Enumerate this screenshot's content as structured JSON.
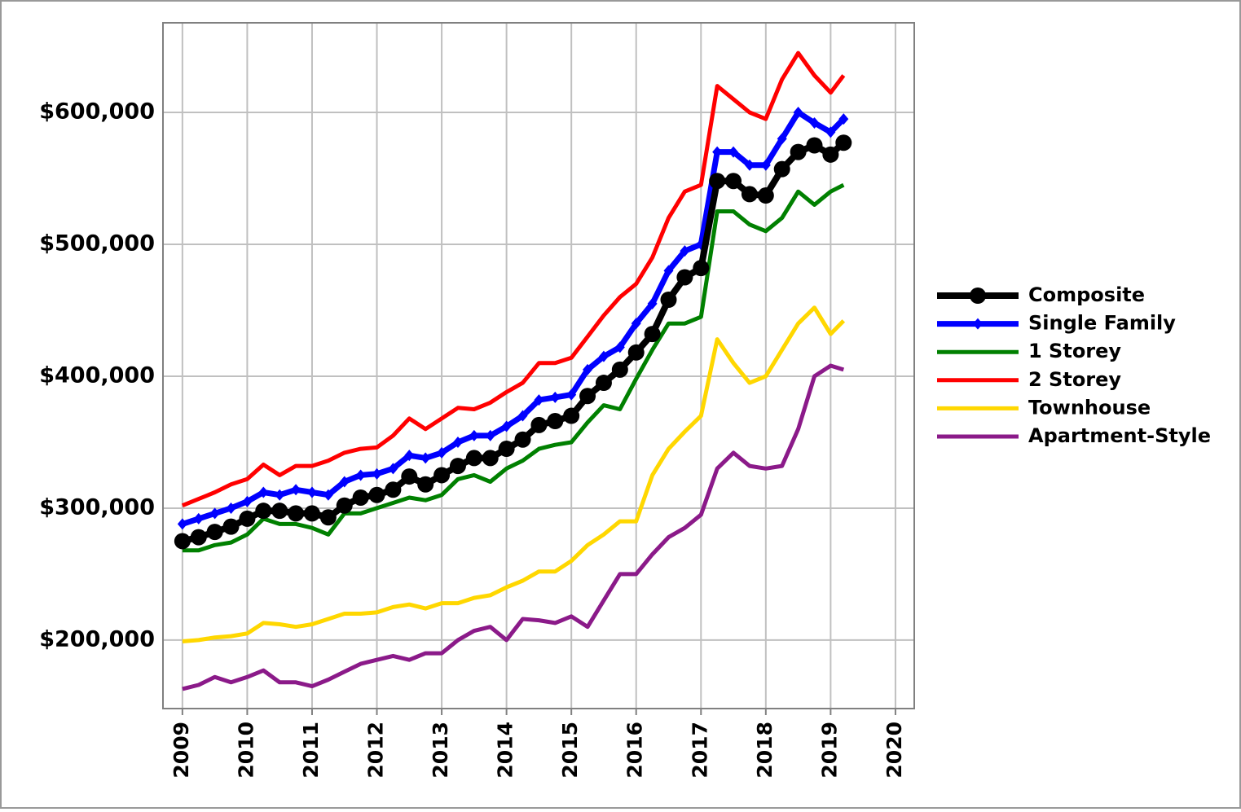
{
  "chart_data": {
    "type": "line",
    "x": [
      2009,
      2009.25,
      2009.5,
      2009.75,
      2010,
      2010.25,
      2010.5,
      2010.75,
      2011,
      2011.25,
      2011.5,
      2011.75,
      2012,
      2012.25,
      2012.5,
      2012.75,
      2013,
      2013.25,
      2013.5,
      2013.75,
      2014,
      2014.25,
      2014.5,
      2014.75,
      2015,
      2015.25,
      2015.5,
      2015.75,
      2016,
      2016.25,
      2016.5,
      2016.75,
      2017,
      2017.25,
      2017.5,
      2017.75,
      2018,
      2018.25,
      2018.5,
      2018.75,
      2019,
      2019.2
    ],
    "xlim": [
      2008.7,
      2020.29
    ],
    "xticks": [
      2009,
      2010,
      2011,
      2012,
      2013,
      2014,
      2015,
      2016,
      2017,
      2018,
      2019,
      2020
    ],
    "ylim": [
      148100,
      667900
    ],
    "yticks": [
      {
        "value": 200000,
        "label": "$200,000"
      },
      {
        "value": 300000,
        "label": "$300,000"
      },
      {
        "value": 400000,
        "label": "$400,000"
      },
      {
        "value": 500000,
        "label": "$500,000"
      },
      {
        "value": 600000,
        "label": "$600,000"
      }
    ],
    "grid": true,
    "legend": "right",
    "series": [
      {
        "name": "Composite",
        "color": "#000000",
        "marker": "circle",
        "values": [
          275000,
          278000,
          282000,
          286000,
          292000,
          298000,
          298000,
          296000,
          296000,
          293000,
          302000,
          308000,
          310000,
          314000,
          324000,
          318000,
          325000,
          332000,
          338000,
          338000,
          345000,
          352000,
          363000,
          366000,
          370000,
          385000,
          395000,
          405000,
          418000,
          432000,
          458000,
          475000,
          482000,
          548000,
          548000,
          538000,
          537000,
          557000,
          570000,
          575000,
          568000,
          577000
        ]
      },
      {
        "name": "Single Family",
        "color": "#0000ff",
        "marker": "diamond",
        "values": [
          288000,
          292000,
          296000,
          300000,
          305000,
          312000,
          310000,
          314000,
          312000,
          310000,
          320000,
          325000,
          326000,
          330000,
          340000,
          338000,
          342000,
          350000,
          355000,
          355000,
          362000,
          370000,
          382000,
          384000,
          386000,
          405000,
          415000,
          422000,
          440000,
          455000,
          480000,
          495000,
          500000,
          570000,
          570000,
          560000,
          560000,
          580000,
          600000,
          592000,
          585000,
          595000
        ]
      },
      {
        "name": "1 Storey",
        "color": "#008000",
        "values": [
          268000,
          268000,
          272000,
          274000,
          280000,
          292000,
          288000,
          288000,
          285000,
          280000,
          296000,
          296000,
          300000,
          304000,
          308000,
          306000,
          310000,
          322000,
          325000,
          320000,
          330000,
          336000,
          345000,
          348000,
          350000,
          365000,
          378000,
          375000,
          398000,
          420000,
          440000,
          440000,
          445000,
          525000,
          525000,
          515000,
          510000,
          520000,
          540000,
          530000,
          540000,
          545000
        ]
      },
      {
        "name": "2 Storey",
        "color": "#ff0000",
        "values": [
          302000,
          307000,
          312000,
          318000,
          322000,
          333000,
          325000,
          332000,
          332000,
          336000,
          342000,
          345000,
          346000,
          355000,
          368000,
          360000,
          368000,
          376000,
          375000,
          380000,
          388000,
          395000,
          410000,
          410000,
          414000,
          430000,
          446000,
          460000,
          470000,
          490000,
          520000,
          540000,
          545000,
          620000,
          610000,
          600000,
          595000,
          625000,
          645000,
          628000,
          615000,
          628000
        ]
      },
      {
        "name": "Townhouse",
        "color": "#ffd700",
        "values": [
          199000,
          200000,
          202000,
          203000,
          205000,
          213000,
          212000,
          210000,
          212000,
          216000,
          220000,
          220000,
          221000,
          225000,
          227000,
          224000,
          228000,
          228000,
          232000,
          234000,
          240000,
          245000,
          252000,
          252000,
          260000,
          272000,
          280000,
          290000,
          290000,
          325000,
          345000,
          358000,
          370000,
          428000,
          410000,
          395000,
          400000,
          420000,
          440000,
          452000,
          432000,
          442000
        ]
      },
      {
        "name": "Apartment-Style",
        "color": "#8b1a89",
        "values": [
          163000,
          166000,
          172000,
          168000,
          172000,
          177000,
          168000,
          168000,
          165000,
          170000,
          176000,
          182000,
          185000,
          188000,
          185000,
          190000,
          190000,
          200000,
          207000,
          210000,
          200000,
          216000,
          215000,
          213000,
          218000,
          210000,
          230000,
          250000,
          250000,
          265000,
          278000,
          285000,
          295000,
          330000,
          342000,
          332000,
          330000,
          332000,
          360000,
          400000,
          408000,
          405000
        ]
      }
    ]
  }
}
